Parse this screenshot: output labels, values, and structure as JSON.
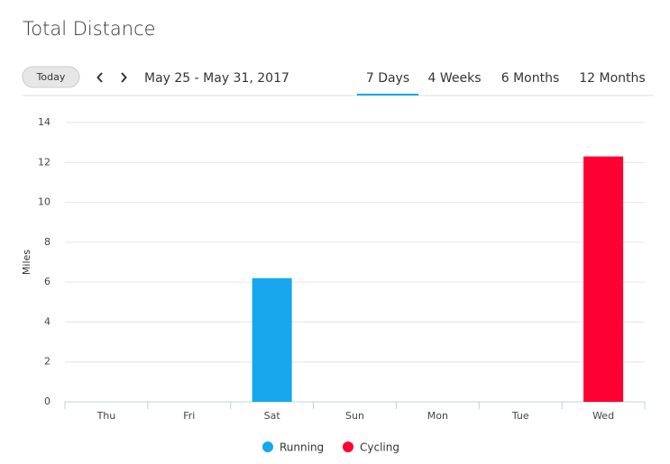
{
  "header": {
    "title": "Total Distance"
  },
  "nav": {
    "today": "Today",
    "date_range": "May 25 - May 31, 2017"
  },
  "tabs": {
    "items": [
      "7 Days",
      "4 Weeks",
      "6 Months",
      "12 Months"
    ],
    "active": 0
  },
  "chart_data": {
    "type": "bar",
    "stacked": true,
    "y_label": "Miles",
    "categories": [
      "Thu",
      "Fri",
      "Sat",
      "Sun",
      "Mon",
      "Tue",
      "Wed"
    ],
    "series": [
      {
        "name": "Running",
        "color": "#17a7ec",
        "values": [
          null,
          null,
          6.2,
          null,
          null,
          null,
          null
        ]
      },
      {
        "name": "Cycling",
        "color": "#ff0033",
        "values": [
          null,
          null,
          null,
          null,
          null,
          null,
          12.3
        ]
      }
    ],
    "ylim": [
      0,
      14
    ],
    "yticks": [
      0,
      2,
      4,
      6,
      8,
      10,
      12,
      14
    ],
    "grid": true
  }
}
